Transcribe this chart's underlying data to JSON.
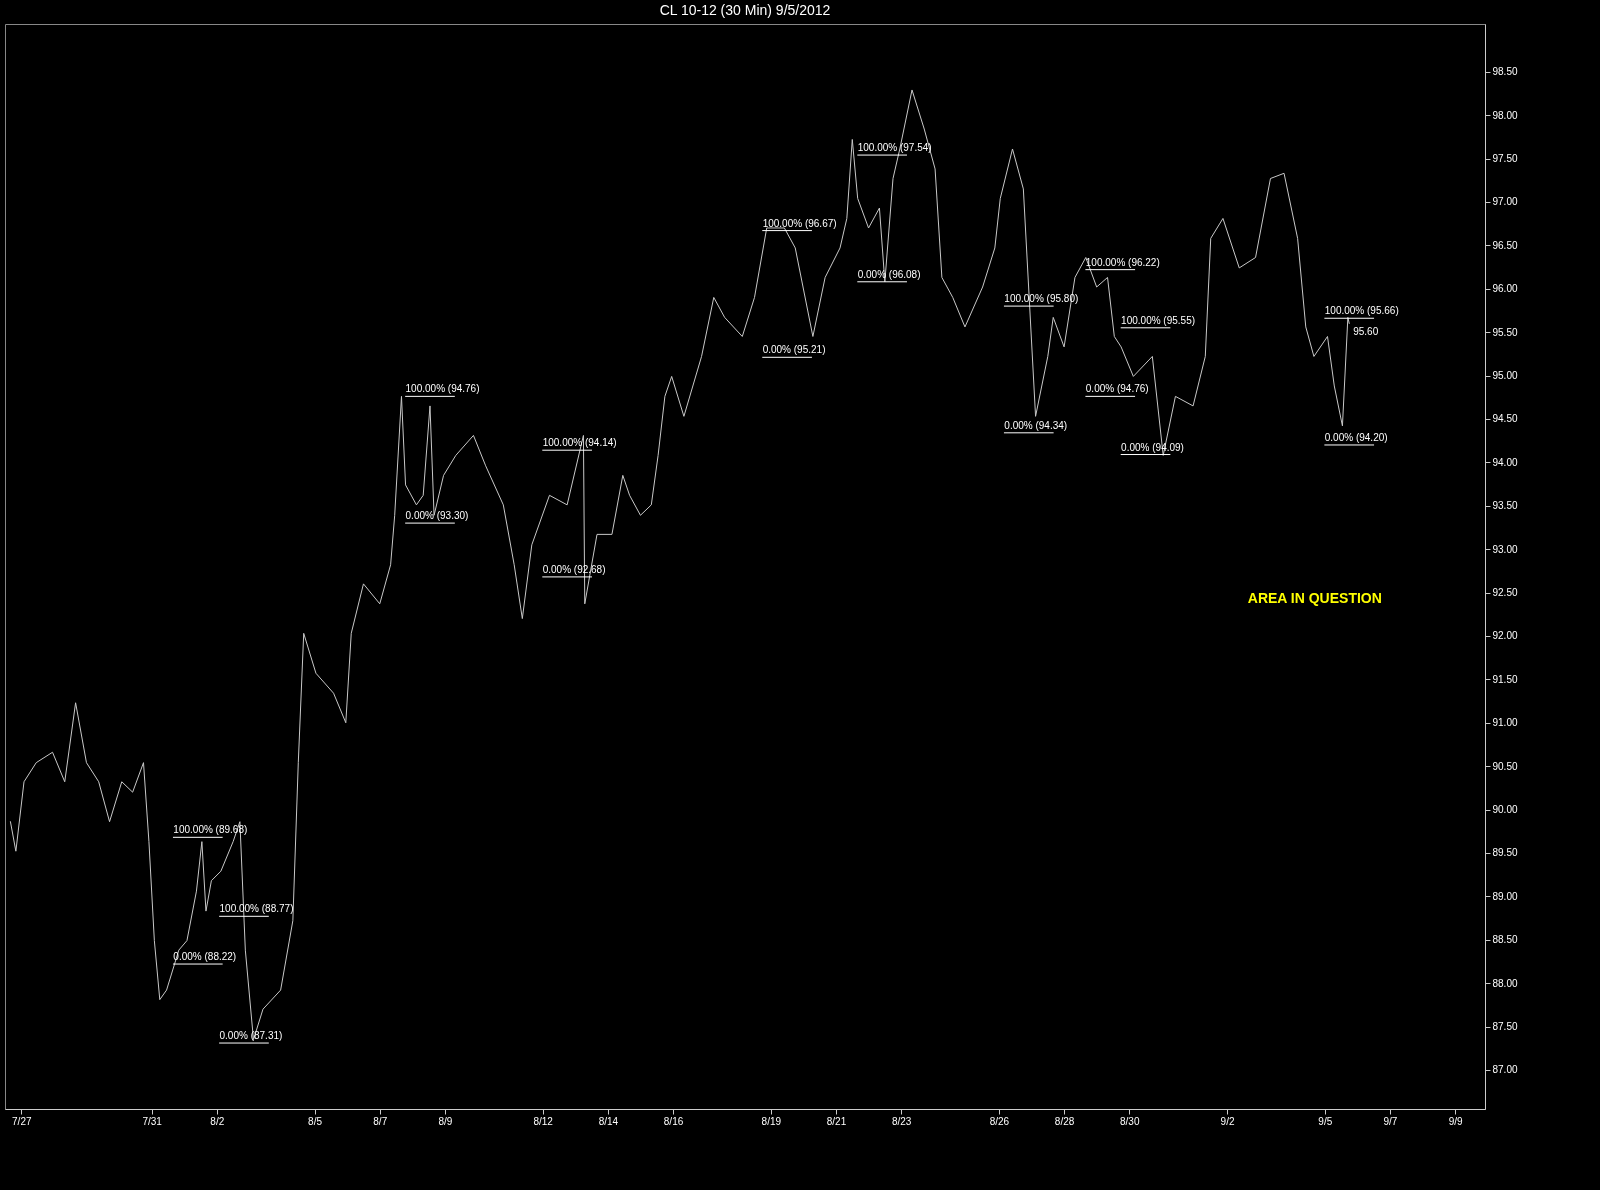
{
  "chart_data": {
    "type": "line",
    "title": "CL 10-12 (30 Min)  9/5/2012",
    "x": [
      "2012-07-26T16:00",
      "2012-07-26T20:00",
      "2012-07-27T02:00",
      "2012-07-27T11:00",
      "2012-07-27T23:00",
      "2012-07-28T08:00",
      "2012-07-28T16:00",
      "2012-07-29T00:00",
      "2012-07-29T09:00",
      "2012-07-29T17:00",
      "2012-07-30T02:00",
      "2012-07-30T10:00",
      "2012-07-30T18:00",
      "2012-07-30T22:00",
      "2012-07-31T02:00",
      "2012-07-31T06:00",
      "2012-07-31T11:00",
      "2012-07-31T20:00",
      "2012-08-01T02:00",
      "2012-08-01T09:00",
      "2012-08-01T13:00",
      "2012-08-01T16:00",
      "2012-08-01T20:00",
      "2012-08-02T03:00",
      "2012-08-02T12:00",
      "2012-08-02T17:00",
      "2012-08-02T21:00",
      "2012-08-03T03:00",
      "2012-08-03T10:00",
      "2012-08-03T23:00",
      "2012-08-04T08:00",
      "2012-08-04T12:00",
      "2012-08-04T16:00",
      "2012-08-05T01:00",
      "2012-08-05T14:00",
      "2012-08-05T23:00",
      "2012-08-06T03:00",
      "2012-08-06T12:00",
      "2012-08-07T00:00",
      "2012-08-07T08:00",
      "2012-08-07T11:00",
      "2012-08-07T16:00",
      "2012-08-07T19:00",
      "2012-08-08T03:00",
      "2012-08-08T08:00",
      "2012-08-08T13:00",
      "2012-08-08T16:00",
      "2012-08-08T23:00",
      "2012-08-09T08:00",
      "2012-08-09T21:00",
      "2012-08-10T06:00",
      "2012-08-10T19:00",
      "2012-08-11T03:00",
      "2012-08-11T09:00",
      "2012-08-11T16:00",
      "2012-08-12T05:00",
      "2012-08-12T18:00",
      "2012-08-13T06:00",
      "2012-08-13T07:00",
      "2012-08-13T16:00",
      "2012-08-14T03:00",
      "2012-08-14T11:00",
      "2012-08-14T16:00",
      "2012-08-15T00:00",
      "2012-08-15T08:00",
      "2012-08-15T13:00",
      "2012-08-15T18:00",
      "2012-08-15T23:00",
      "2012-08-16T08:00",
      "2012-08-16T21:00",
      "2012-08-17T06:00",
      "2012-08-17T14:00",
      "2012-08-18T03:00",
      "2012-08-18T12:00",
      "2012-08-18T21:00",
      "2012-08-19T10:00",
      "2012-08-19T18:00",
      "2012-08-20T07:00",
      "2012-08-20T16:00",
      "2012-08-21T03:00",
      "2012-08-21T08:00",
      "2012-08-21T12:00",
      "2012-08-21T16:00",
      "2012-08-22T00:00",
      "2012-08-22T08:00",
      "2012-08-22T12:00",
      "2012-08-22T18:00",
      "2012-08-22T23:00",
      "2012-08-23T08:00",
      "2012-08-23T17:00",
      "2012-08-24T01:00",
      "2012-08-24T06:00",
      "2012-08-24T14:00",
      "2012-08-24T23:00",
      "2012-08-25T12:00",
      "2012-08-25T21:00",
      "2012-08-26T01:00",
      "2012-08-26T10:00",
      "2012-08-26T18:00",
      "2012-08-27T03:00",
      "2012-08-27T12:00",
      "2012-08-27T16:00",
      "2012-08-28T00:00",
      "2012-08-28T08:00",
      "2012-08-28T16:00",
      "2012-08-29T00:00",
      "2012-08-29T08:00",
      "2012-08-29T13:00",
      "2012-08-29T18:00",
      "2012-08-30T03:00",
      "2012-08-30T17:00",
      "2012-08-31T01:00",
      "2012-08-31T10:00",
      "2012-08-31T23:00",
      "2012-09-01T08:00",
      "2012-09-01T12:00",
      "2012-09-01T21:00",
      "2012-09-02T09:00",
      "2012-09-02T21:00",
      "2012-09-03T08:00",
      "2012-09-03T18:00",
      "2012-09-04T04:00",
      "2012-09-04T10:00",
      "2012-09-04T16:00",
      "2012-09-05T02:00",
      "2012-09-05T07:00",
      "2012-09-05T13:00",
      "2012-09-05T17:00",
      "2012-09-05T18:00"
    ],
    "series": [
      {
        "color": "#c8c8c8",
        "values": [
          89.86,
          89.52,
          90.32,
          90.54,
          90.66,
          90.32,
          91.23,
          90.54,
          90.32,
          89.86,
          90.32,
          90.2,
          90.54,
          89.63,
          88.49,
          87.81,
          87.92,
          88.38,
          88.49,
          89.06,
          89.63,
          88.83,
          89.18,
          89.29,
          89.63,
          89.86,
          88.38,
          87.35,
          87.7,
          87.92,
          88.72,
          90.54,
          92.03,
          91.57,
          91.34,
          91.0,
          92.03,
          92.6,
          92.37,
          92.82,
          93.39,
          94.76,
          93.74,
          93.51,
          93.62,
          94.65,
          93.39,
          93.85,
          94.08,
          94.31,
          93.96,
          93.51,
          92.82,
          92.2,
          93.05,
          93.62,
          93.51,
          94.31,
          92.37,
          93.17,
          93.17,
          93.85,
          93.62,
          93.39,
          93.51,
          94.08,
          94.76,
          94.99,
          94.53,
          95.22,
          95.9,
          95.67,
          95.45,
          95.9,
          96.7,
          96.7,
          96.47,
          95.45,
          96.13,
          96.47,
          96.81,
          97.72,
          97.04,
          96.7,
          96.93,
          96.08,
          97.27,
          97.61,
          98.29,
          97.84,
          97.38,
          96.13,
          95.9,
          95.56,
          96.02,
          96.47,
          97.04,
          97.61,
          97.15,
          94.53,
          95.22,
          95.67,
          95.33,
          96.13,
          96.36,
          96.02,
          96.13,
          95.45,
          95.33,
          94.99,
          95.22,
          94.08,
          94.76,
          94.65,
          95.22,
          96.58,
          96.81,
          96.24,
          96.36,
          97.27,
          97.33,
          96.58,
          95.56,
          95.22,
          95.45,
          94.88,
          94.42,
          95.67,
          95.6
        ]
      },
      {
        "color": "#ffffff",
        "x": [
          "2012-07-31T16:00",
          "2012-08-02T04:00"
        ],
        "values": [
          89.68,
          89.68
        ]
      },
      {
        "color": "#ffffff",
        "x": [
          "2012-07-31T16:00",
          "2012-08-02T04:00"
        ],
        "values": [
          88.22,
          88.22
        ]
      },
      {
        "color": "#ffffff",
        "x": [
          "2012-08-02T02:00",
          "2012-08-03T14:00"
        ],
        "values": [
          88.77,
          88.77
        ]
      },
      {
        "color": "#ffffff",
        "x": [
          "2012-08-02T02:00",
          "2012-08-03T14:00"
        ],
        "values": [
          87.31,
          87.31
        ]
      },
      {
        "color": "#ffffff",
        "x": [
          "2012-08-07T19:00",
          "2012-08-09T07:00"
        ],
        "values": [
          94.76,
          94.76
        ]
      },
      {
        "color": "#ffffff",
        "x": [
          "2012-08-07T19:00",
          "2012-08-09T07:00"
        ],
        "values": [
          93.3,
          93.3
        ]
      },
      {
        "color": "#ffffff",
        "x": [
          "2012-08-12T00:00",
          "2012-08-13T12:00"
        ],
        "values": [
          94.14,
          94.14
        ]
      },
      {
        "color": "#ffffff",
        "x": [
          "2012-08-12T00:00",
          "2012-08-13T12:00"
        ],
        "values": [
          92.68,
          92.68
        ]
      },
      {
        "color": "#ffffff",
        "x": [
          "2012-08-18T18:00",
          "2012-08-20T06:00"
        ],
        "values": [
          96.67,
          96.67
        ]
      },
      {
        "color": "#ffffff",
        "x": [
          "2012-08-18T18:00",
          "2012-08-20T06:00"
        ],
        "values": [
          95.21,
          95.21
        ]
      },
      {
        "color": "#ffffff",
        "x": [
          "2012-08-21T16:00",
          "2012-08-23T04:00"
        ],
        "values": [
          97.54,
          97.54
        ]
      },
      {
        "color": "#ffffff",
        "x": [
          "2012-08-21T16:00",
          "2012-08-23T04:00"
        ],
        "values": [
          96.08,
          96.08
        ]
      },
      {
        "color": "#ffffff",
        "x": [
          "2012-08-26T04:00",
          "2012-08-27T16:00"
        ],
        "values": [
          95.8,
          95.8
        ]
      },
      {
        "color": "#ffffff",
        "x": [
          "2012-08-26T04:00",
          "2012-08-27T16:00"
        ],
        "values": [
          94.34,
          94.34
        ]
      },
      {
        "color": "#ffffff",
        "x": [
          "2012-08-28T16:00",
          "2012-08-30T04:00"
        ],
        "values": [
          96.22,
          96.22
        ]
      },
      {
        "color": "#ffffff",
        "x": [
          "2012-08-28T16:00",
          "2012-08-30T04:00"
        ],
        "values": [
          94.76,
          94.76
        ]
      },
      {
        "color": "#ffffff",
        "x": [
          "2012-08-29T18:00",
          "2012-08-31T06:00"
        ],
        "values": [
          95.55,
          95.55
        ]
      },
      {
        "color": "#ffffff",
        "x": [
          "2012-08-29T18:00",
          "2012-08-31T06:00"
        ],
        "values": [
          94.09,
          94.09
        ]
      },
      {
        "color": "#ffffff",
        "x": [
          "2012-09-05T00:00",
          "2012-09-06T12:00"
        ],
        "values": [
          95.66,
          95.66
        ]
      },
      {
        "color": "#ffffff",
        "x": [
          "2012-09-05T00:00",
          "2012-09-06T12:00"
        ],
        "values": [
          94.2,
          94.2
        ]
      }
    ],
    "xlim": [
      "2012-07-26T12:00",
      "2012-09-09T22:00"
    ],
    "xticks": [
      {
        "value": "2012-07-27",
        "label": "7/27"
      },
      {
        "value": "2012-07-31",
        "label": "7/31"
      },
      {
        "value": "2012-08-02",
        "label": "8/2"
      },
      {
        "value": "2012-08-05",
        "label": "8/5"
      },
      {
        "value": "2012-08-07",
        "label": "8/7"
      },
      {
        "value": "2012-08-09",
        "label": "8/9"
      },
      {
        "value": "2012-08-12",
        "label": "8/12"
      },
      {
        "value": "2012-08-14",
        "label": "8/14"
      },
      {
        "value": "2012-08-16",
        "label": "8/16"
      },
      {
        "value": "2012-08-19",
        "label": "8/19"
      },
      {
        "value": "2012-08-21",
        "label": "8/21"
      },
      {
        "value": "2012-08-23",
        "label": "8/23"
      },
      {
        "value": "2012-08-26",
        "label": "8/26"
      },
      {
        "value": "2012-08-28",
        "label": "8/28"
      },
      {
        "value": "2012-08-30",
        "label": "8/30"
      },
      {
        "value": "2012-09-02",
        "label": "9/2"
      },
      {
        "value": "2012-09-05",
        "label": "9/5"
      },
      {
        "value": "2012-09-07",
        "label": "9/7"
      },
      {
        "value": "2012-09-09",
        "label": "9/9"
      }
    ],
    "ylim": [
      86.55,
      99.05
    ],
    "yticks": [
      {
        "value": 87,
        "label": "87.00"
      },
      {
        "value": 87.5,
        "label": "87.50"
      },
      {
        "value": 88,
        "label": "88.00"
      },
      {
        "value": 88.5,
        "label": "88.50"
      },
      {
        "value": 89,
        "label": "89.00"
      },
      {
        "value": 89.5,
        "label": "89.50"
      },
      {
        "value": 90,
        "label": "90.00"
      },
      {
        "value": 90.5,
        "label": "90.50"
      },
      {
        "value": 91,
        "label": "91.00"
      },
      {
        "value": 91.5,
        "label": "91.50"
      },
      {
        "value": 92,
        "label": "92.00"
      },
      {
        "value": 92.5,
        "label": "92.50"
      },
      {
        "value": 93,
        "label": "93.00"
      },
      {
        "value": 93.5,
        "label": "93.50"
      },
      {
        "value": 94,
        "label": "94.00"
      },
      {
        "value": 94.5,
        "label": "94.50"
      },
      {
        "value": 95,
        "label": "95.00"
      },
      {
        "value": 95.5,
        "label": "95.50"
      },
      {
        "value": 96,
        "label": "96.00"
      },
      {
        "value": 96.5,
        "label": "96.50"
      },
      {
        "value": 97,
        "label": "97.00"
      },
      {
        "value": 97.5,
        "label": "97.50"
      },
      {
        "value": 98,
        "label": "98.00"
      },
      {
        "value": 98.5,
        "label": "98.50"
      }
    ],
    "annotations": [
      {
        "text": "100.00% (89.68)",
        "x": "2012-07-31T16:00",
        "y": 89.68
      },
      {
        "text": "0.00% (88.22)",
        "x": "2012-07-31T16:00",
        "y": 88.22
      },
      {
        "text": "100.00% (88.77)",
        "x": "2012-08-02T02:00",
        "y": 88.77
      },
      {
        "text": "0.00% (87.31)",
        "x": "2012-08-02T02:00",
        "y": 87.31
      },
      {
        "text": "100.00% (94.76)",
        "x": "2012-08-07T19:00",
        "y": 94.76
      },
      {
        "text": "0.00% (93.30)",
        "x": "2012-08-07T19:00",
        "y": 93.3
      },
      {
        "text": "100.00% (94.14)",
        "x": "2012-08-12T00:00",
        "y": 94.14
      },
      {
        "text": "0.00% (92.68)",
        "x": "2012-08-12T00:00",
        "y": 92.68
      },
      {
        "text": "100.00% (96.67)",
        "x": "2012-08-18T18:00",
        "y": 96.67
      },
      {
        "text": "0.00% (95.21)",
        "x": "2012-08-18T18:00",
        "y": 95.21
      },
      {
        "text": "100.00% (97.54)",
        "x": "2012-08-21T16:00",
        "y": 97.54
      },
      {
        "text": "0.00% (96.08)",
        "x": "2012-08-21T16:00",
        "y": 96.08
      },
      {
        "text": "100.00% (95.80)",
        "x": "2012-08-26T04:00",
        "y": 95.8
      },
      {
        "text": "0.00% (94.34)",
        "x": "2012-08-26T04:00",
        "y": 94.34
      },
      {
        "text": "100.00% (96.22)",
        "x": "2012-08-28T16:00",
        "y": 96.22
      },
      {
        "text": "0.00% (94.76)",
        "x": "2012-08-28T16:00",
        "y": 94.76
      },
      {
        "text": "100.00% (95.55)",
        "x": "2012-08-29T18:00",
        "y": 95.55
      },
      {
        "text": "0.00% (94.09)",
        "x": "2012-08-29T18:00",
        "y": 94.09
      },
      {
        "text": "100.00% (95.66)",
        "x": "2012-09-05T00:00",
        "y": 95.66
      },
      {
        "text": "0.00% (94.20)",
        "x": "2012-09-05T00:00",
        "y": 94.2
      },
      {
        "text": "95.60",
        "x": "2012-09-05T18:00",
        "y": 95.6
      },
      "AREA IN QUESTION"
    ]
  }
}
